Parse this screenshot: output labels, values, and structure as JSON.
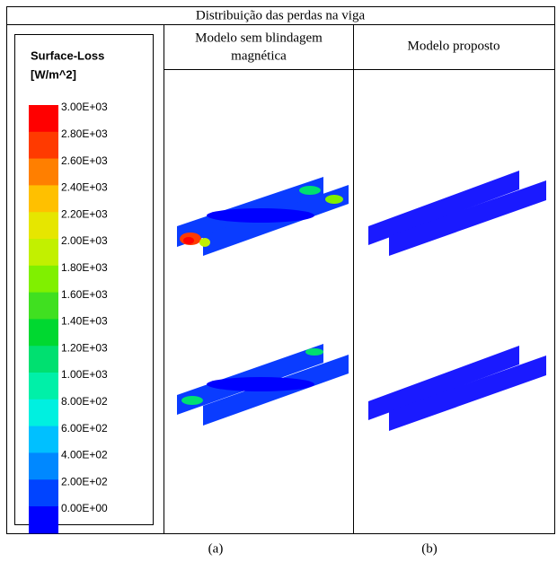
{
  "figure": {
    "title": "Distribuição das perdas na viga",
    "legend": {
      "title": "Surface-Loss",
      "unit": "[W/m^2]",
      "entries": [
        {
          "label": "3.00E+03",
          "color": "#ff0000"
        },
        {
          "label": "2.80E+03",
          "color": "#ff3a00"
        },
        {
          "label": "2.60E+03",
          "color": "#ff7f00"
        },
        {
          "label": "2.40E+03",
          "color": "#ffc000"
        },
        {
          "label": "2.20E+03",
          "color": "#e6e600"
        },
        {
          "label": "2.00E+03",
          "color": "#c2f000"
        },
        {
          "label": "1.80E+03",
          "color": "#80f000"
        },
        {
          "label": "1.60E+03",
          "color": "#40e020"
        },
        {
          "label": "1.40E+03",
          "color": "#00d830"
        },
        {
          "label": "1.20E+03",
          "color": "#00e070"
        },
        {
          "label": "1.00E+03",
          "color": "#00f0a8"
        },
        {
          "label": "8.00E+02",
          "color": "#00f0e0"
        },
        {
          "label": "6.00E+02",
          "color": "#00c0ff"
        },
        {
          "label": "4.00E+02",
          "color": "#0088ff"
        },
        {
          "label": "2.00E+02",
          "color": "#0044ff"
        },
        {
          "label": "0.00E+00",
          "color": "#0000ff"
        }
      ]
    },
    "columns": [
      {
        "header": [
          "Modelo sem blindagem",
          "magnética"
        ],
        "caption": "(a)"
      },
      {
        "header": [
          "Modelo proposto"
        ],
        "caption": "(b)"
      }
    ]
  }
}
